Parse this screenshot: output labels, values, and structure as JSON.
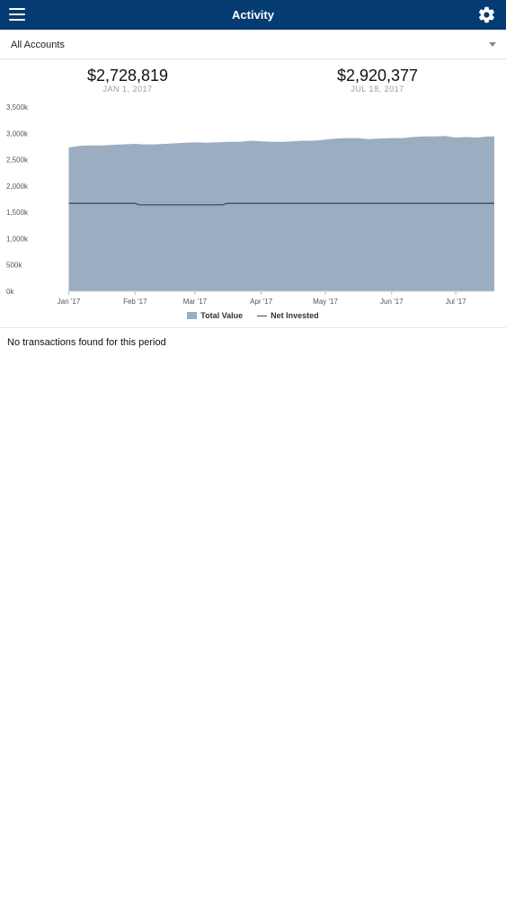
{
  "header": {
    "title": "Activity",
    "menu_icon": "hamburger-menu-icon",
    "settings_icon": "gear-icon"
  },
  "account_selector": {
    "value": "All Accounts"
  },
  "summary": {
    "start": {
      "value": "$2,728,819",
      "date": "JAN 1, 2017"
    },
    "end": {
      "value": "$2,920,377",
      "date": "JUL 18, 2017"
    }
  },
  "chart_data": {
    "type": "area",
    "xlabel": "",
    "ylabel": "",
    "ylim": [
      0,
      3500
    ],
    "yticks": [
      "0k",
      "500k",
      "1,000k",
      "1,500k",
      "2,000k",
      "2,500k",
      "3,000k",
      "3,500k"
    ],
    "ytick_values": [
      0,
      500,
      1000,
      1500,
      2000,
      2500,
      3000,
      3500
    ],
    "xticks": [
      "Jan '17",
      "Feb '17",
      "Mar '17",
      "Apr '17",
      "May '17",
      "Jun '17",
      "Jul '17"
    ],
    "xtick_positions": [
      0,
      31,
      59,
      90,
      120,
      151,
      181
    ],
    "xlim": [
      -12,
      199
    ],
    "grid": false,
    "legend": "bottom",
    "colors": {
      "area": "#9badc1",
      "line": "#3a4f66"
    },
    "series": [
      {
        "name": "Total Value",
        "x": [
          0,
          5,
          10,
          15,
          20,
          25,
          31,
          35,
          40,
          45,
          50,
          55,
          59,
          65,
          70,
          75,
          80,
          85,
          90,
          95,
          100,
          105,
          110,
          115,
          120,
          125,
          130,
          135,
          140,
          145,
          151,
          156,
          161,
          166,
          171,
          176,
          181,
          186,
          191,
          196,
          199
        ],
        "values": [
          2730,
          2760,
          2770,
          2770,
          2780,
          2790,
          2800,
          2790,
          2790,
          2800,
          2810,
          2820,
          2830,
          2820,
          2830,
          2840,
          2840,
          2860,
          2850,
          2840,
          2840,
          2850,
          2860,
          2860,
          2880,
          2900,
          2910,
          2910,
          2890,
          2900,
          2910,
          2910,
          2930,
          2940,
          2940,
          2950,
          2920,
          2930,
          2920,
          2940,
          2940
        ]
      },
      {
        "name": "Net Invested",
        "x": [
          0,
          31,
          33,
          72,
          74,
          199
        ],
        "values": [
          1670,
          1670,
          1640,
          1640,
          1670,
          1670
        ]
      }
    ]
  },
  "empty_state": {
    "message": "No transactions found for this period"
  }
}
